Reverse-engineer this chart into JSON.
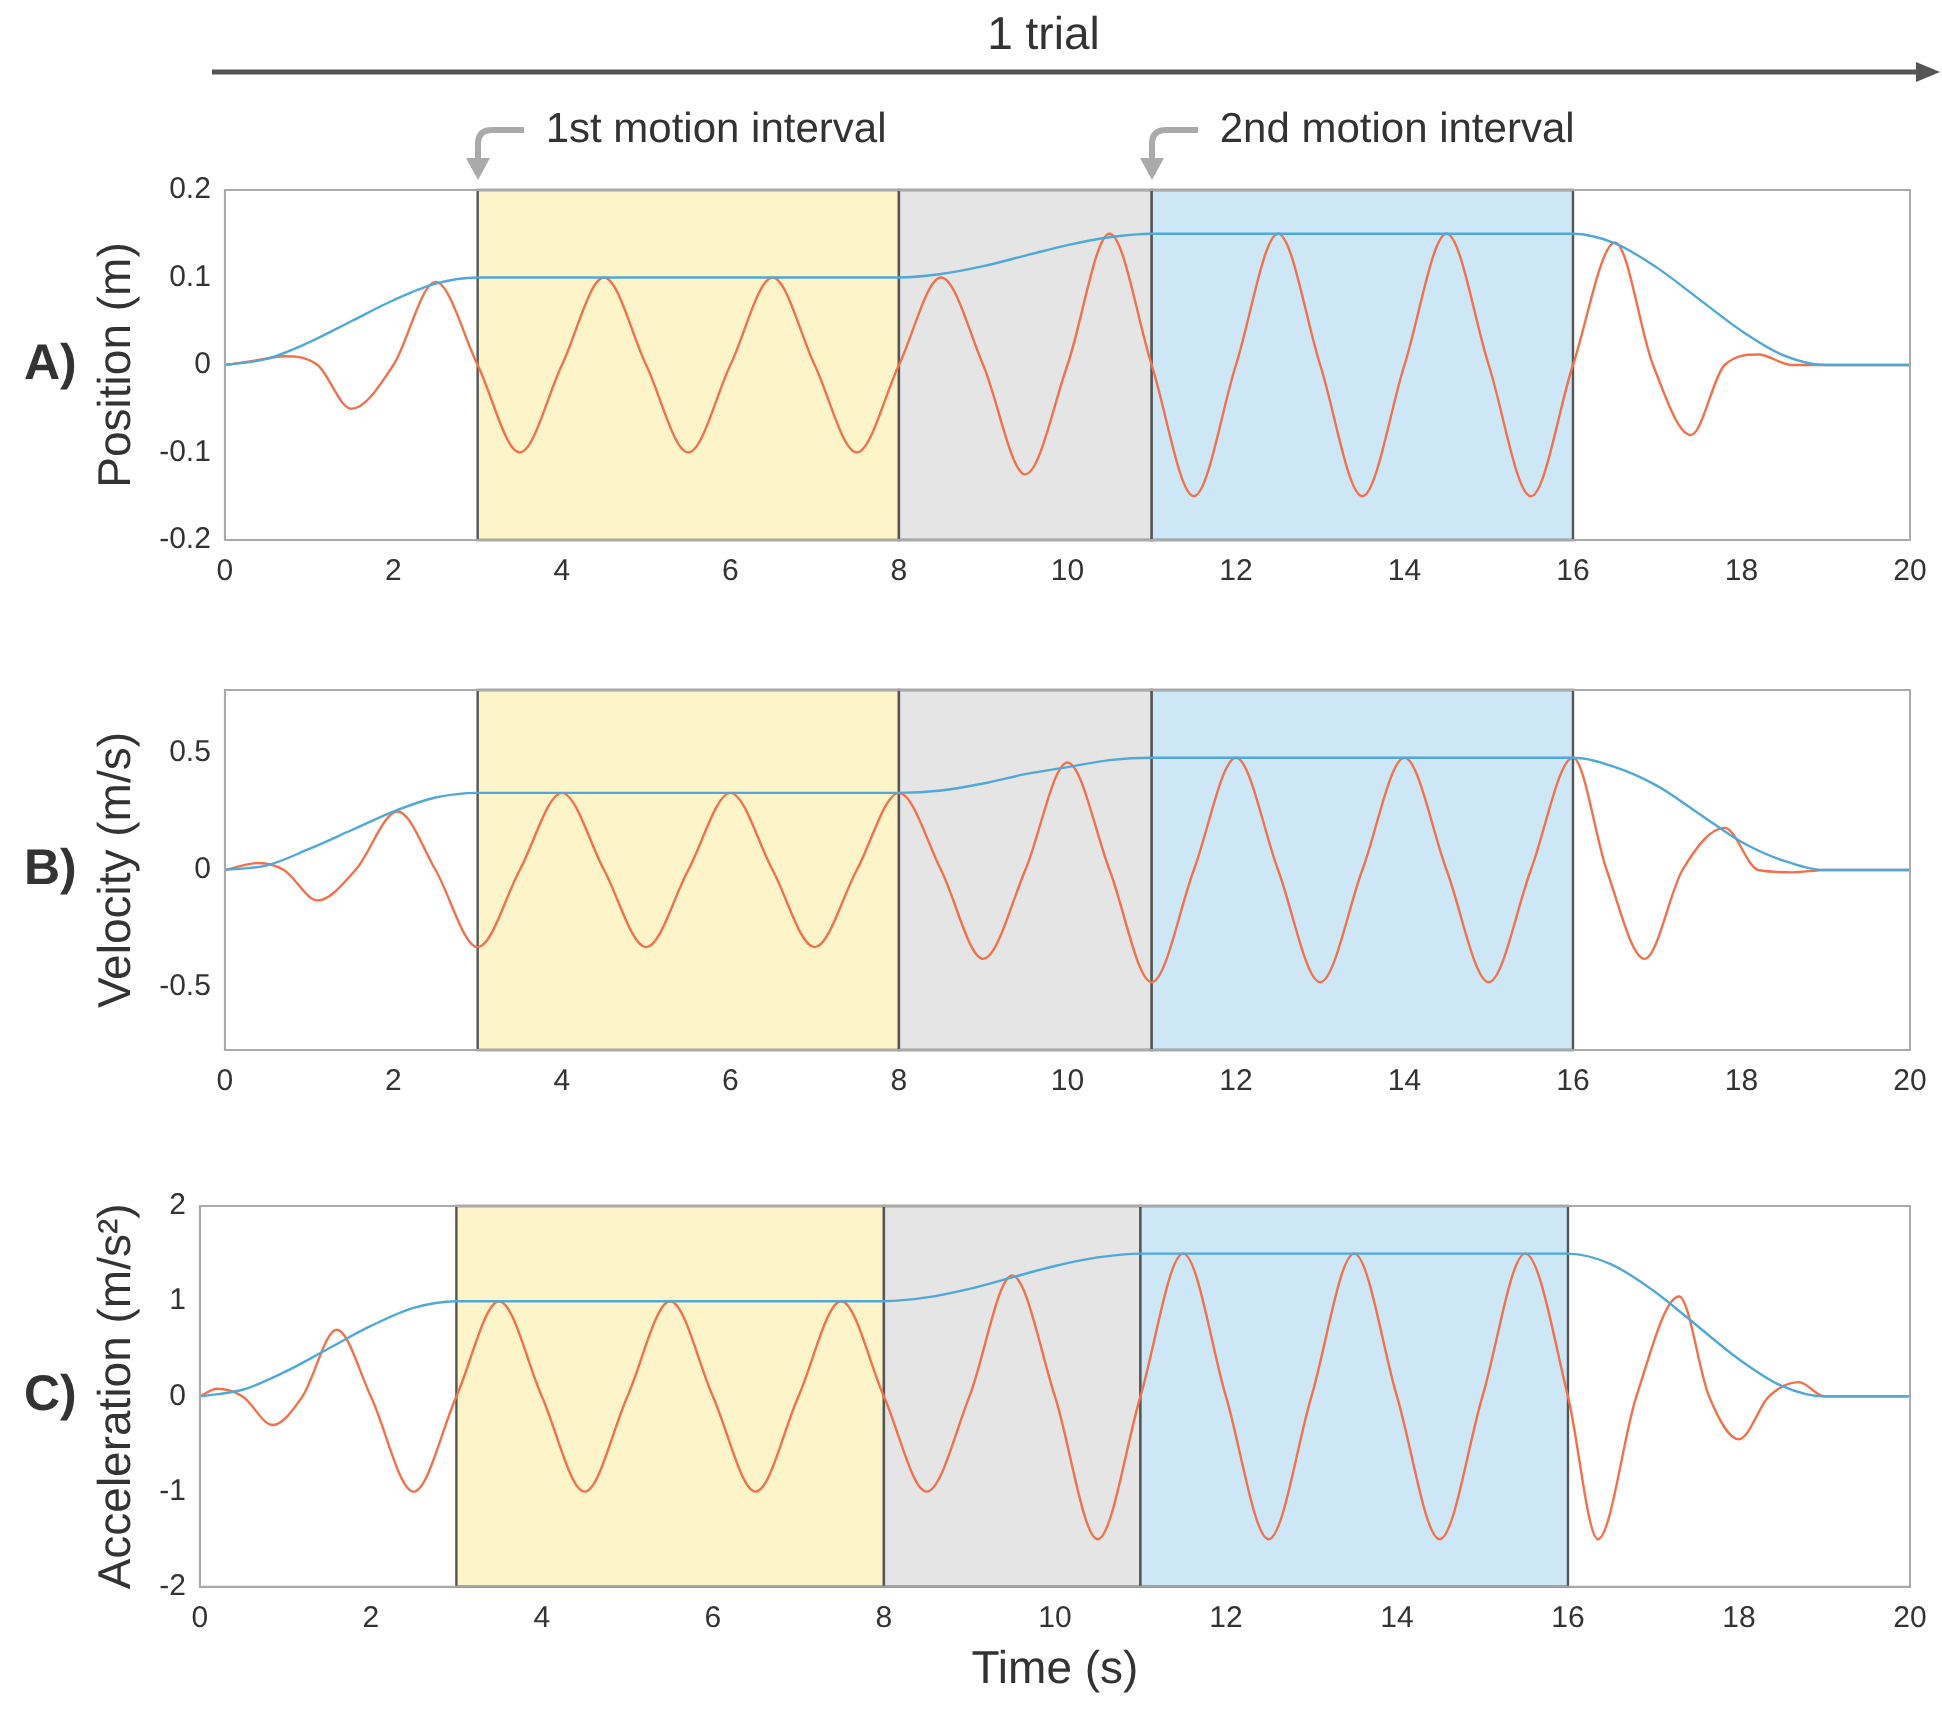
{
  "chart_data": [
    {
      "type": "line",
      "ylabel": "Position (m)",
      "xlim": [
        0,
        20
      ],
      "xticks": [
        0,
        2,
        4,
        6,
        8,
        10,
        12,
        14,
        16,
        18,
        20
      ],
      "ylim": [
        -0.2,
        0.2
      ],
      "yticks": [
        -0.2,
        -0.1,
        0,
        0.1,
        0.2
      ],
      "annotations": [
        "1 trial",
        "A)"
      ],
      "bands": [
        {
          "axis": "x",
          "from": 3,
          "to": 8,
          "label": "1st motion interval",
          "color": "#fdf5c9"
        },
        {
          "axis": "x",
          "from": 8,
          "to": 11,
          "color": "#e5e5e5"
        },
        {
          "axis": "x",
          "from": 11,
          "to": 16,
          "label": "2nd motion interval",
          "color": "#cde7f7"
        }
      ],
      "series": [
        {
          "color": "#4fa8d8",
          "x": [
            0,
            0.5,
            1,
            1.5,
            2,
            2.5,
            3,
            8,
            8.5,
            9,
            9.5,
            10,
            10.5,
            11,
            16,
            16.5,
            17,
            17.5,
            18,
            18.5,
            19,
            20
          ],
          "values": [
            0,
            0.007,
            0.026,
            0.05,
            0.074,
            0.093,
            0.1,
            0.1,
            0.104,
            0.113,
            0.125,
            0.137,
            0.146,
            0.15,
            0.15,
            0.139,
            0.111,
            0.075,
            0.039,
            0.011,
            0,
            0
          ]
        },
        {
          "color": "#f0714b",
          "x": [
            0,
            0.35,
            0.7,
            1.1,
            1.5,
            2,
            2.5,
            3,
            3.5,
            4,
            4.5,
            5,
            5.5,
            6,
            6.5,
            7,
            7.5,
            8,
            8.5,
            9,
            9.5,
            10,
            10.5,
            11,
            11.5,
            12,
            12.5,
            13,
            13.5,
            14,
            14.5,
            15,
            15.5,
            16,
            16.5,
            16.95,
            17.4,
            17.8,
            18.2,
            18.6,
            19,
            20
          ],
          "values": [
            0,
            0.005,
            0.01,
            0,
            -0.05,
            0,
            0.095,
            0,
            -0.1,
            0,
            0.1,
            0,
            -0.1,
            0,
            0.1,
            0,
            -0.1,
            0,
            0.1,
            0,
            -0.125,
            0,
            0.15,
            0,
            -0.15,
            0,
            0.15,
            0,
            -0.15,
            0,
            0.15,
            0,
            -0.15,
            0,
            0.14,
            0,
            -0.08,
            0,
            0.012,
            0,
            0,
            0
          ]
        }
      ]
    },
    {
      "type": "line",
      "ylabel": "Velocity (m/s)",
      "xlim": [
        0,
        20
      ],
      "xticks": [
        0,
        2,
        4,
        6,
        8,
        10,
        12,
        14,
        16,
        18,
        20
      ],
      "ylim": [
        -0.77,
        0.77
      ],
      "yticks": [
        -0.5,
        0,
        0.5
      ],
      "annotations": [
        "B)"
      ],
      "bands": [
        {
          "axis": "x",
          "from": 3,
          "to": 8,
          "color": "#fdf5c9"
        },
        {
          "axis": "x",
          "from": 8,
          "to": 11,
          "color": "#e5e5e5"
        },
        {
          "axis": "x",
          "from": 11,
          "to": 16,
          "color": "#cde7f7"
        }
      ],
      "series": [
        {
          "color": "#4fa8d8",
          "x": [
            0,
            0.5,
            1,
            1.5,
            2,
            2.5,
            3,
            8,
            8.5,
            9,
            9.5,
            10,
            10.5,
            11,
            16,
            16.5,
            17,
            17.5,
            18,
            18.5,
            19,
            20
          ],
          "values": [
            0,
            0.02,
            0.09,
            0.17,
            0.25,
            0.31,
            0.33,
            0.33,
            0.34,
            0.37,
            0.41,
            0.44,
            0.47,
            0.48,
            0.48,
            0.44,
            0.36,
            0.24,
            0.12,
            0.04,
            0,
            0
          ]
        },
        {
          "color": "#f0714b",
          "x": [
            0,
            0.4,
            0.7,
            1.1,
            1.55,
            2.05,
            2.5,
            3,
            3.5,
            4,
            4.5,
            5,
            5.5,
            6,
            6.5,
            7,
            7.5,
            8,
            8.5,
            9,
            9.5,
            10,
            10.5,
            11,
            11.5,
            12,
            12.5,
            13,
            13.5,
            14,
            14.5,
            15,
            15.5,
            16,
            16.4,
            16.85,
            17.3,
            17.8,
            18.2,
            18.6,
            19,
            20
          ],
          "values": [
            0,
            0.03,
            0,
            -0.13,
            0,
            0.25,
            0,
            -0.33,
            0,
            0.33,
            0,
            -0.33,
            0,
            0.33,
            0,
            -0.33,
            0,
            0.33,
            0,
            -0.38,
            0,
            0.46,
            0,
            -0.48,
            0,
            0.48,
            0,
            -0.48,
            0,
            0.48,
            0,
            -0.48,
            0,
            0.48,
            0,
            -0.38,
            0,
            0.18,
            0,
            -0.01,
            0,
            0
          ]
        }
      ]
    },
    {
      "type": "line",
      "xlabel": "Time (s)",
      "ylabel": "Acceleration (m/s²)",
      "xlim": [
        0,
        20
      ],
      "xticks": [
        0,
        2,
        4,
        6,
        8,
        10,
        12,
        14,
        16,
        18,
        20
      ],
      "ylim": [
        -2,
        2
      ],
      "yticks": [
        -2,
        -1,
        0,
        1,
        2
      ],
      "annotations": [
        "C)"
      ],
      "bands": [
        {
          "axis": "x",
          "from": 3,
          "to": 8,
          "color": "#fdf5c9"
        },
        {
          "axis": "x",
          "from": 8,
          "to": 11,
          "color": "#e5e5e5"
        },
        {
          "axis": "x",
          "from": 11,
          "to": 16,
          "color": "#cde7f7"
        }
      ],
      "series": [
        {
          "color": "#4fa8d8",
          "x": [
            0,
            0.5,
            1,
            1.5,
            2,
            2.5,
            3,
            8,
            8.5,
            9,
            9.5,
            10,
            10.5,
            11,
            16,
            16.5,
            17,
            17.5,
            18,
            18.5,
            19,
            20
          ],
          "values": [
            0,
            0.07,
            0.26,
            0.5,
            0.74,
            0.93,
            1,
            1,
            1.04,
            1.13,
            1.25,
            1.37,
            1.46,
            1.5,
            1.5,
            1.39,
            1.11,
            0.75,
            0.39,
            0.11,
            0,
            0
          ]
        },
        {
          "color": "#f0714b",
          "x": [
            0,
            0.2,
            0.5,
            0.85,
            1.2,
            1.6,
            2,
            2.5,
            3,
            3.5,
            4,
            4.5,
            5,
            5.5,
            6,
            6.5,
            7,
            7.5,
            8,
            8.5,
            9,
            9.5,
            10,
            10.5,
            11,
            11.5,
            12,
            12.5,
            13,
            13.5,
            14,
            14.5,
            15,
            15.5,
            16,
            16.35,
            16.8,
            17.3,
            17.65,
            18,
            18.35,
            18.7,
            19,
            20
          ],
          "values": [
            0,
            0.08,
            0,
            -0.3,
            0,
            0.7,
            0,
            -1,
            0,
            1,
            0,
            -1,
            0,
            1,
            0,
            -1,
            0,
            1,
            0,
            -1,
            0,
            1.27,
            0,
            -1.5,
            0,
            1.5,
            0,
            -1.5,
            0,
            1.5,
            0,
            -1.5,
            0,
            1.5,
            0,
            -1.5,
            0,
            1.05,
            0,
            -0.45,
            0,
            0.15,
            0,
            0
          ]
        }
      ]
    }
  ]
}
